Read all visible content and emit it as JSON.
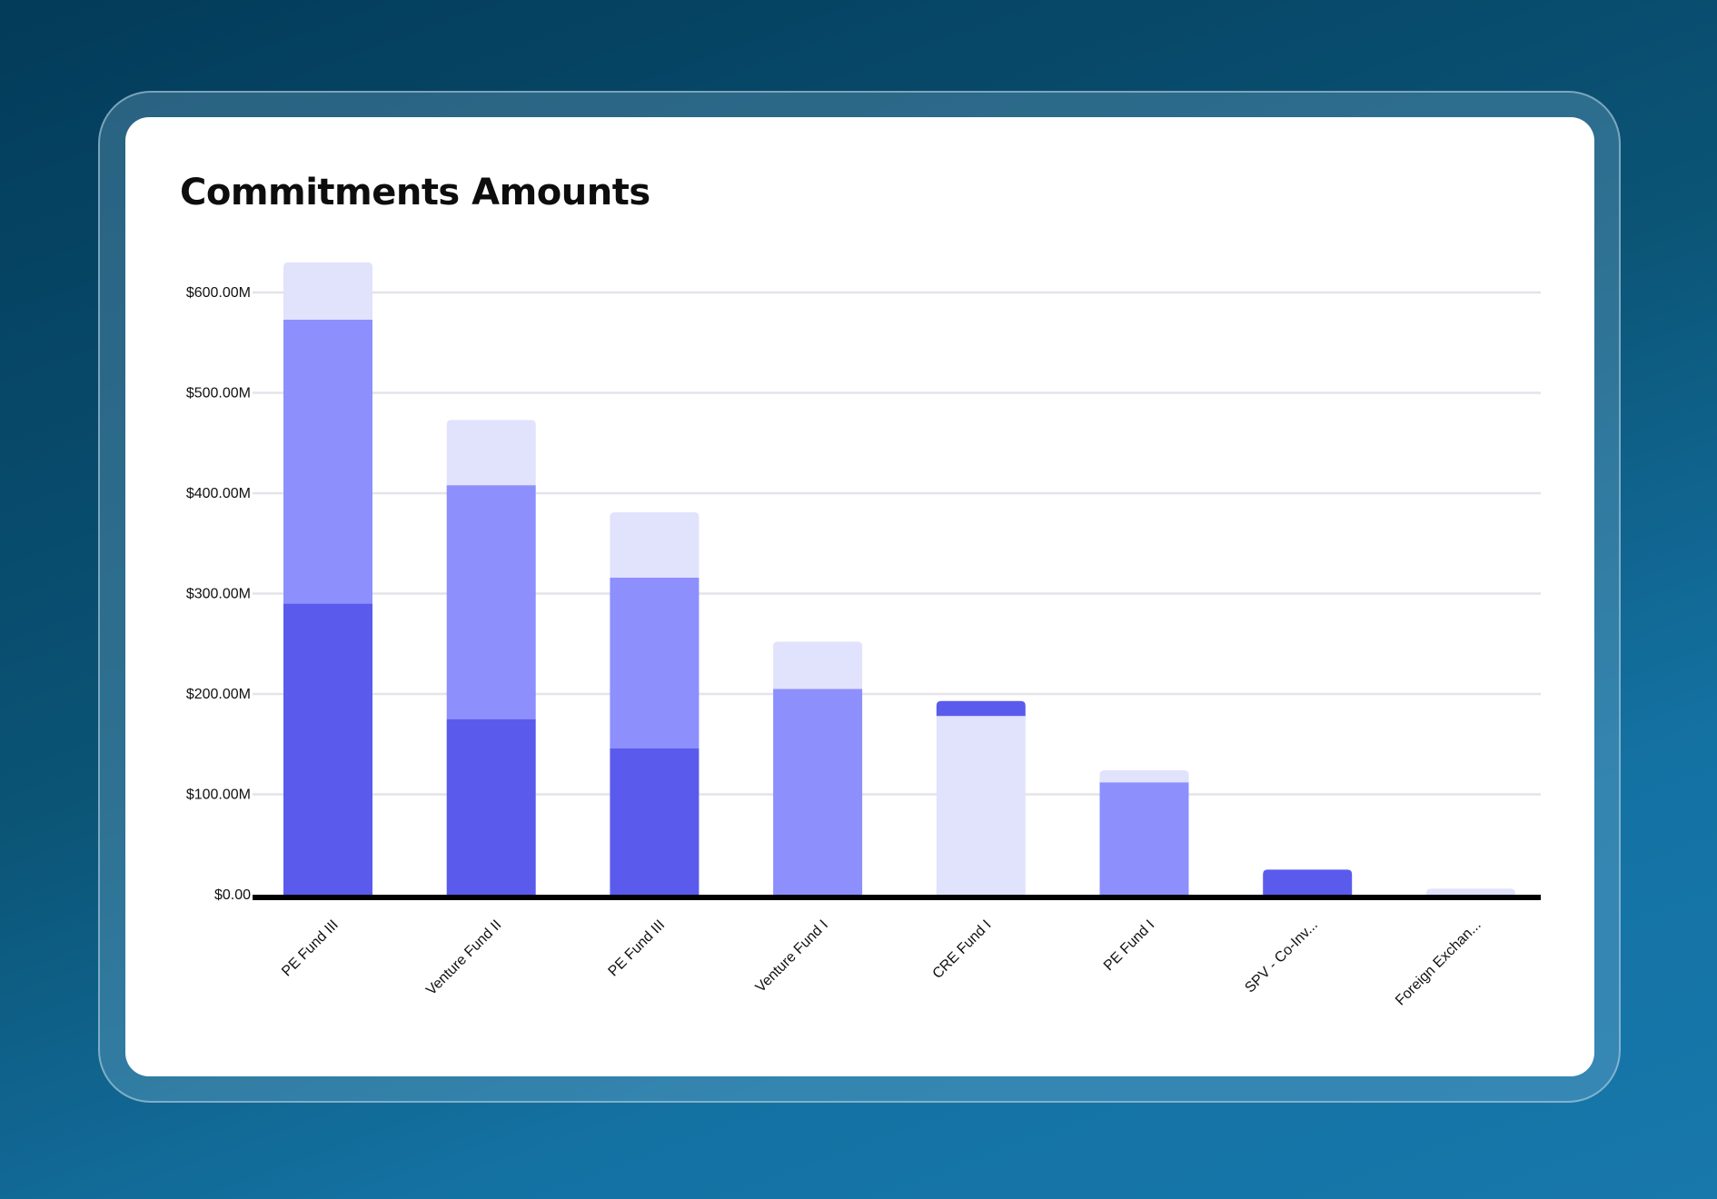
{
  "chart_data": {
    "type": "bar",
    "stacked": true,
    "title": "Commitments Amounts",
    "xlabel": "",
    "ylabel": "",
    "categories": [
      "PE Fund III",
      "Venture Fund II",
      "PE Fund III",
      "Venture Fund I",
      "CRE Fund I",
      "PE Fund I",
      "SPV - Co-Inv...",
      "Foreign Exchan..."
    ],
    "y_ticks": [
      "$0.00",
      "$100.00M",
      "$200.00M",
      "$300.00M",
      "$400.00M",
      "$500.00M",
      "$600.00M"
    ],
    "ylim": [
      0,
      600
    ],
    "grid": true,
    "legend": "none",
    "segments": [
      [
        {
          "value": 290,
          "color": "#5a5bed"
        },
        {
          "value": 283,
          "color": "#8d8ffd"
        },
        {
          "value": 57,
          "color": "#e1e2fc"
        }
      ],
      [
        {
          "value": 175,
          "color": "#5a5bed"
        },
        {
          "value": 233,
          "color": "#8d8ffd"
        },
        {
          "value": 65,
          "color": "#e1e2fc"
        }
      ],
      [
        {
          "value": 146,
          "color": "#5a5bed"
        },
        {
          "value": 170,
          "color": "#8d8ffd"
        },
        {
          "value": 65,
          "color": "#e1e2fc"
        }
      ],
      [
        {
          "value": 205,
          "color": "#8d8ffd"
        },
        {
          "value": 47,
          "color": "#e1e2fc"
        }
      ],
      [
        {
          "value": 178,
          "color": "#e1e2fc"
        },
        {
          "value": 15,
          "color": "#5a5bed"
        }
      ],
      [
        {
          "value": 112,
          "color": "#8d8ffd"
        },
        {
          "value": 12,
          "color": "#e1e2fc"
        }
      ],
      [
        {
          "value": 25,
          "color": "#5a5bed"
        }
      ],
      [
        {
          "value": 6,
          "color": "#e1e2fc"
        }
      ]
    ],
    "colors": {
      "dark": "#5a5bed",
      "medium": "#8d8ffd",
      "light": "#e1e2fc",
      "grid": "#e4e4ea",
      "axis": "#000000"
    }
  }
}
